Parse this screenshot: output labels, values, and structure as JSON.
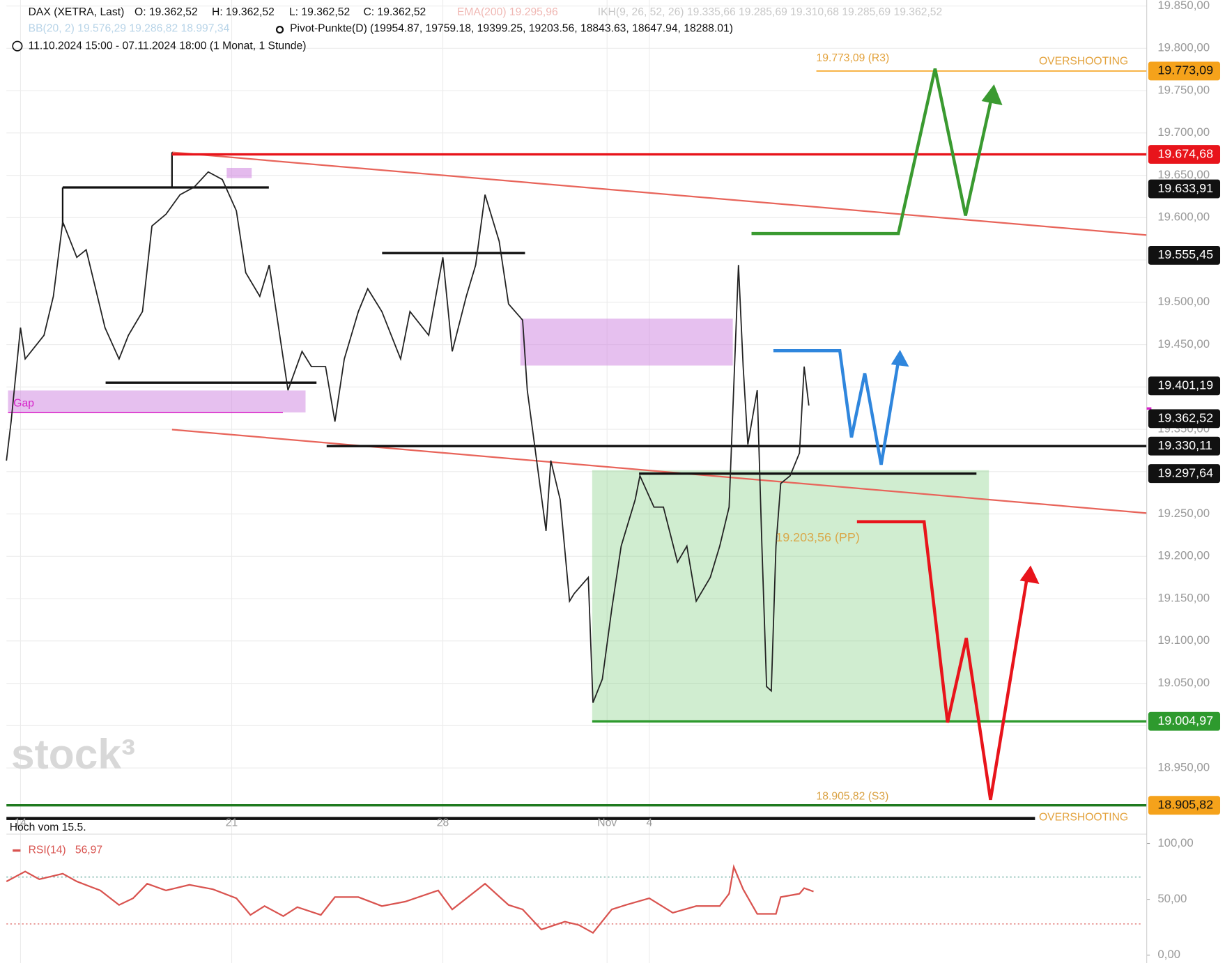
{
  "header": {
    "instrument": "DAX (XETRA, Last)",
    "ohlc": [
      "O: 19.362,52",
      "H: 19.362,52",
      "L: 19.362,52",
      "C: 19.362,52"
    ],
    "indicators": [
      "EMA(200)  19.295,96",
      "IKH(9, 26, 52, 26)  19.335,66  19.285,69  19.310,68  19.285,69  19.362,52",
      "BB(20, 2)  19.576,29  19.286,82  18.997,34"
    ],
    "pivots": "Pivot-Punkte(D)  (19954.87,  19759.18,  19399.25,  19203.56,  18843.63,  18647.94,  18288.01)",
    "range": "11.10.2024 15:00 - 07.11.2024 18:00  (1 Monat, 1 Stunde)",
    "watermark": "stock³"
  },
  "chart_data": [
    {
      "type": "line",
      "x": [
        0,
        1,
        3,
        4,
        8,
        10,
        12,
        15,
        17,
        19,
        21,
        24,
        26,
        29,
        31,
        34,
        37,
        40,
        43,
        46,
        49,
        51,
        54,
        56,
        59,
        60,
        63,
        65,
        68,
        70,
        72,
        75,
        77,
        80,
        84,
        86,
        90,
        93,
        95,
        98,
        100,
        102,
        105,
        107,
        110,
        111,
        113,
        115,
        116,
        118,
        120,
        121,
        124,
        125,
        127,
        129,
        131,
        134,
        135,
        138,
        140,
        143,
        145,
        147,
        150,
        152,
        154,
        156,
        157,
        158,
        160,
        161,
        162,
        163,
        164,
        165,
        167,
        169,
        170,
        171
      ],
      "series": [
        {
          "color": "#222222",
          "values": [
            19313,
            19359,
            19470,
            19433,
            19461,
            19507,
            19595,
            19553,
            19562,
            19516,
            19470,
            19433,
            19461,
            19489,
            19590,
            19604,
            19627,
            19636,
            19654,
            19645,
            19608,
            19535,
            19507,
            19544,
            19433,
            19396,
            19442,
            19424,
            19424,
            19359,
            19433,
            19489,
            19516,
            19489,
            19433,
            19489,
            19461,
            19553,
            19442,
            19507,
            19544,
            19627,
            19572,
            19498,
            19479,
            19396,
            19313,
            19230,
            19313,
            19267,
            19147,
            19156,
            19175,
            19027,
            19055,
            19138,
            19212,
            19267,
            19295,
            19258,
            19258,
            19193,
            19212,
            19147,
            19175,
            19212,
            19258,
            19544,
            19424,
            19332,
            19396,
            19212,
            19046,
            19041,
            19212,
            19286,
            19295,
            19322,
            19424,
            19378
          ]
        }
      ],
      "xlim": [
        0,
        243
      ],
      "xticks": [
        {
          "value": 3,
          "label": "14"
        },
        {
          "value": 48,
          "label": "21"
        },
        {
          "value": 93,
          "label": "28"
        },
        {
          "value": 128,
          "label": "Nov"
        },
        {
          "value": 137,
          "label": "4"
        }
      ],
      "ylim": [
        18893,
        19857
      ],
      "yticks": [
        {
          "value": 19850,
          "label": "19.850,00"
        },
        {
          "value": 19800,
          "label": "19.800,00"
        },
        {
          "value": 19750,
          "label": "19.750,00"
        },
        {
          "value": 19700,
          "label": "19.700,00"
        },
        {
          "value": 19650,
          "label": "19.650,00"
        },
        {
          "value": 19600,
          "label": "19.600,00"
        },
        {
          "value": 19550,
          "label": "19.550,00"
        },
        {
          "value": 19500,
          "label": "19.500,00"
        },
        {
          "value": 19450,
          "label": "19.450,00"
        },
        {
          "value": 19400,
          "label": "19.400,00"
        },
        {
          "value": 19350,
          "label": "19.350,00"
        },
        {
          "value": 19300,
          "label": "19.300,00"
        },
        {
          "value": 19250,
          "label": "19.250,00"
        },
        {
          "value": 19200,
          "label": "19.200,00"
        },
        {
          "value": 19150,
          "label": "19.150,00"
        },
        {
          "value": 19100,
          "label": "19.100,00"
        },
        {
          "value": 19050,
          "label": "19.050,00"
        },
        {
          "value": 19000,
          "label": "19.000,00"
        },
        {
          "value": 18950,
          "label": "18.950,00"
        }
      ],
      "grid": true,
      "levels": [
        {
          "value": 19773.09,
          "label": "19.773,09",
          "color": "#f5a21b"
        },
        {
          "value": 19674.68,
          "label": "19.674,68",
          "color": "#e8141b"
        },
        {
          "value": 19633.91,
          "label": "19.633,91",
          "color": "#111111"
        },
        {
          "value": 19555.45,
          "label": "19.555,45",
          "color": "#111111"
        },
        {
          "value": 19401.19,
          "label": "19.401,19",
          "color": "#111111"
        },
        {
          "value": 19362.52,
          "label": "19.362,52",
          "color": "#111111"
        },
        {
          "value": 19330.11,
          "label": "19.330,11",
          "color": "#111111"
        },
        {
          "value": 19297.64,
          "label": "19.297,64",
          "color": "#111111"
        },
        {
          "value": 19004.97,
          "label": "19.004,97",
          "color": "#2e9a2e"
        },
        {
          "value": 18905.82,
          "label": "18.905,82",
          "color": "#f5a21b"
        }
      ],
      "annotations": [
        "19.773,09 (R3)",
        "OVERSHOOTING",
        "19.203,56 (PP)",
        "18.905,82 (S3)",
        "OVERSHOOTING",
        "Gap",
        "Hoch vom 15.5."
      ]
    },
    {
      "type": "line",
      "x": [
        0,
        4,
        7,
        12,
        15,
        20,
        24,
        27,
        30,
        34,
        39,
        44,
        49,
        52,
        55,
        59,
        62,
        67,
        70,
        75,
        80,
        85,
        92,
        95,
        102,
        107,
        110,
        114,
        119,
        122,
        125,
        129,
        132,
        137,
        142,
        147,
        152,
        154,
        155,
        157,
        160,
        164,
        165,
        169,
        170,
        172
      ],
      "series": [
        {
          "name": "RSI(14)",
          "color": "#d9534f",
          "values": [
            66,
            75,
            68,
            73,
            66,
            58,
            45,
            51,
            64,
            58,
            63,
            59,
            51,
            36,
            44,
            35,
            43,
            36,
            52,
            52,
            44,
            48,
            58,
            41,
            64,
            45,
            41,
            23,
            30,
            27,
            20,
            41,
            45,
            51,
            38,
            44,
            44,
            55,
            79,
            59,
            37,
            37,
            52,
            55,
            60,
            56.97
          ]
        }
      ],
      "value_labels": [
        "56,97"
      ],
      "xlim": [
        0,
        243
      ],
      "ylim": [
        0,
        100
      ],
      "yticks": [
        {
          "value": 100,
          "label": "100,00"
        },
        {
          "value": 50,
          "label": "50,00"
        },
        {
          "value": 0,
          "label": "0,00"
        }
      ]
    }
  ]
}
